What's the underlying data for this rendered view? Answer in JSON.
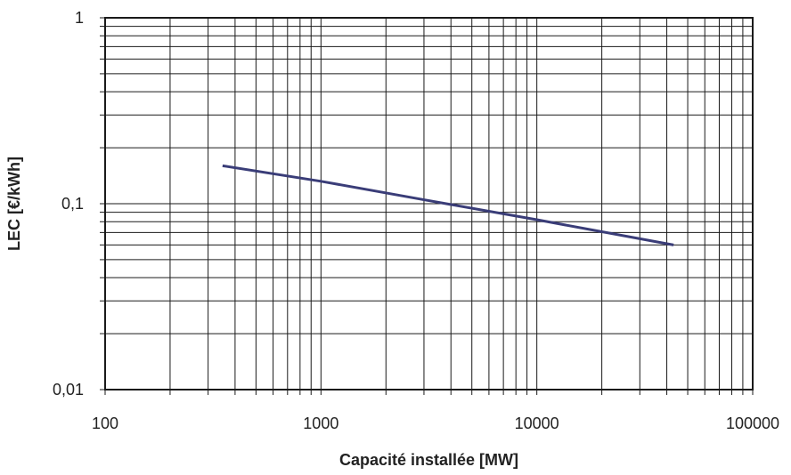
{
  "chart_data": {
    "type": "line",
    "title": "",
    "xlabel": "Capacité installée [MW]",
    "ylabel": "LEC [€/kWh]",
    "x_scale": "log",
    "y_scale": "log",
    "xlim": [
      100,
      100000
    ],
    "ylim": [
      0.01,
      1
    ],
    "x_ticks": [
      100,
      1000,
      10000,
      100000
    ],
    "x_tick_labels": [
      "100",
      "1000",
      "10000",
      "100000"
    ],
    "y_ticks": [
      0.01,
      0.1,
      1
    ],
    "y_tick_labels": [
      "0,01",
      "0,1",
      "1"
    ],
    "grid": true,
    "legend": "none",
    "series": [
      {
        "x": [
          350,
          1000,
          3000,
          10000,
          43000
        ],
        "y": [
          0.16,
          0.132,
          0.105,
          0.082,
          0.06
        ],
        "color": "#3a3d78"
      }
    ],
    "colors": {
      "line": "#3a3d78",
      "grid": "#1a1a1a",
      "axis": "#1a1a1a"
    }
  }
}
